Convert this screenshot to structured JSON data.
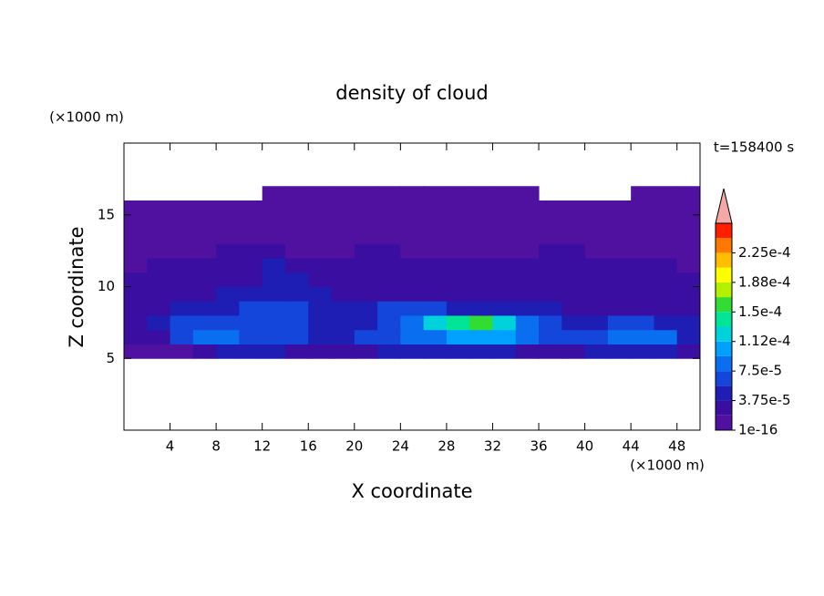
{
  "chart_data": {
    "type": "contour",
    "title": "density of cloud",
    "x_label": "X coordinate",
    "y_label": "Z coordinate",
    "x_unit": "(×1000 m)",
    "y_unit": "(×1000 m)",
    "annotation": "t=158400 s",
    "xlim": [
      0,
      50
    ],
    "ylim": [
      0,
      20
    ],
    "xticks": [
      4,
      8,
      12,
      16,
      20,
      24,
      28,
      32,
      36,
      40,
      44,
      48
    ],
    "yticks": [
      5,
      10,
      15
    ],
    "x": [
      1,
      3,
      5,
      7,
      9,
      11,
      13,
      15,
      17,
      19,
      21,
      23,
      25,
      27,
      29,
      31,
      33,
      35,
      37,
      39,
      41,
      43,
      45,
      47,
      49
    ],
    "z": [
      5.5,
      6.5,
      7.5,
      8.5,
      9.5,
      10.5,
      11.5,
      12.5,
      13.5,
      14.5,
      15.5,
      16.5
    ],
    "values": [
      [
        1e-05,
        1e-05,
        1e-05,
        3e-05,
        4e-05,
        4e-05,
        4e-05,
        3e-05,
        3e-05,
        2e-05,
        3e-05,
        4e-05,
        4e-05,
        4e-05,
        4e-05,
        4e-05,
        4e-05,
        3e-05,
        2e-05,
        3e-05,
        4e-05,
        4e-05,
        4e-05,
        4e-05,
        3e-05
      ],
      [
        2e-05,
        3e-05,
        6e-05,
        8e-05,
        9e-05,
        7e-05,
        7e-05,
        6e-05,
        5e-05,
        4e-05,
        6e-05,
        7e-05,
        8e-05,
        9e-05,
        0.0001,
        0.00011,
        0.0001,
        8e-05,
        7e-05,
        6e-05,
        7e-05,
        9e-05,
        9e-05,
        8e-05,
        5e-05
      ],
      [
        3e-05,
        5e-05,
        6e-05,
        7e-05,
        7e-05,
        6e-05,
        6e-05,
        7e-05,
        5e-05,
        4e-05,
        5e-05,
        7e-05,
        9e-05,
        0.00012,
        0.00014,
        0.00016,
        0.00012,
        8e-05,
        6e-05,
        5e-05,
        5e-05,
        6e-05,
        6e-05,
        5e-05,
        4e-05
      ],
      [
        2e-05,
        3e-05,
        4e-05,
        5e-05,
        5e-05,
        6e-05,
        6e-05,
        6e-05,
        5e-05,
        4e-05,
        5e-05,
        6e-05,
        6e-05,
        6e-05,
        5e-05,
        5e-05,
        5e-05,
        4e-05,
        4e-05,
        3e-05,
        3e-05,
        3e-05,
        3e-05,
        3e-05,
        3e-05
      ],
      [
        2e-05,
        2e-05,
        3e-05,
        3e-05,
        4e-05,
        4e-05,
        5e-05,
        5e-05,
        4e-05,
        3e-05,
        3e-05,
        3e-05,
        3e-05,
        3e-05,
        3e-05,
        3e-05,
        3e-05,
        3e-05,
        3e-05,
        3e-05,
        3e-05,
        3e-05,
        3e-05,
        3e-05,
        3e-05
      ],
      [
        2.5e-05,
        2.5e-05,
        2.5e-05,
        2.5e-05,
        2.5e-05,
        2.5e-05,
        5e-05,
        4e-05,
        2.5e-05,
        2.5e-05,
        2.5e-05,
        2.5e-05,
        2.5e-05,
        2.5e-05,
        2.5e-05,
        2.5e-05,
        2.5e-05,
        2.5e-05,
        2.5e-05,
        2.5e-05,
        2.5e-05,
        2.5e-05,
        2.5e-05,
        2.5e-05,
        2.5e-05
      ],
      [
        1e-05,
        2e-05,
        2e-05,
        2e-05,
        2e-05,
        2e-05,
        4e-05,
        3e-05,
        2e-05,
        2e-05,
        2e-05,
        2e-05,
        2e-05,
        2e-05,
        2e-05,
        2e-05,
        2e-05,
        2e-05,
        2e-05,
        2e-05,
        2e-05,
        2e-05,
        2e-05,
        2e-05,
        1e-05
      ],
      [
        1e-05,
        1e-05,
        1e-05,
        1e-05,
        2e-05,
        2e-05,
        2e-05,
        1e-05,
        1e-05,
        1e-05,
        2e-05,
        2e-05,
        1e-05,
        1e-05,
        1e-05,
        1e-05,
        1e-05,
        1e-05,
        2e-05,
        2e-05,
        1e-05,
        1e-05,
        1e-05,
        1e-05,
        1e-05
      ],
      [
        1e-05,
        1e-05,
        1e-05,
        1e-05,
        1e-05,
        1e-05,
        1e-05,
        1e-05,
        1e-05,
        1e-05,
        1e-05,
        1e-05,
        1e-05,
        1e-05,
        1e-05,
        1e-05,
        1e-05,
        1e-05,
        1e-05,
        1e-05,
        1e-05,
        1e-05,
        1e-05,
        1e-05,
        1e-05
      ],
      [
        1e-05,
        1e-05,
        1e-05,
        1e-05,
        1e-05,
        1e-05,
        1e-05,
        1e-05,
        1e-05,
        1e-05,
        1e-05,
        1e-05,
        1e-05,
        1e-05,
        1e-05,
        1e-05,
        1e-05,
        1e-05,
        1e-05,
        1e-05,
        1e-05,
        1e-05,
        1e-05,
        1e-05,
        1e-05
      ],
      [
        1e-05,
        1e-05,
        1e-05,
        1e-05,
        1e-05,
        1e-05,
        1e-05,
        1e-05,
        1e-05,
        1e-05,
        1e-05,
        1e-05,
        1e-05,
        1e-05,
        1e-05,
        1e-05,
        1e-05,
        1e-05,
        1e-05,
        1e-05,
        1e-05,
        1e-05,
        1e-05,
        1e-05,
        1e-05
      ],
      [
        null,
        null,
        null,
        null,
        null,
        null,
        1e-05,
        1e-05,
        1e-05,
        1e-05,
        1e-05,
        1e-05,
        1e-05,
        1e-05,
        1e-05,
        1e-05,
        1e-05,
        1e-05,
        null,
        null,
        null,
        null,
        1e-05,
        1e-05,
        1e-05
      ]
    ],
    "clim": [
      0,
      0.0002625
    ],
    "clevels": [
      1e-16,
      1.875e-05,
      3.75e-05,
      5.625e-05,
      7.5e-05,
      9.375e-05,
      0.0001125,
      0.00013125,
      0.00015,
      0.00016875,
      0.0001875,
      0.00020625,
      0.000225,
      0.00024375,
      0.0002625
    ],
    "colors": [
      "#5010a0",
      "#3a0ea0",
      "#1e1eb4",
      "#1446dc",
      "#0a6ef0",
      "#00a0ff",
      "#00d2dc",
      "#00e696",
      "#32dc32",
      "#b4f000",
      "#ffff00",
      "#ffbe00",
      "#ff7800",
      "#ff1e00"
    ],
    "extend_color": "#f4a8a8",
    "cticks": [
      1e-16,
      {
        "value": 3.75e-05,
        "label": "3.75e-5"
      },
      {
        "value": 7.5e-05,
        "label": "7.5e-5"
      },
      {
        "value": 0.0001125,
        "label": "1.12e-4"
      },
      {
        "value": 0.00015,
        "label": "1.5e-4"
      },
      {
        "value": 0.0001875,
        "label": "1.88e-4"
      },
      {
        "value": 0.000225,
        "label": "2.25e-4"
      }
    ]
  }
}
